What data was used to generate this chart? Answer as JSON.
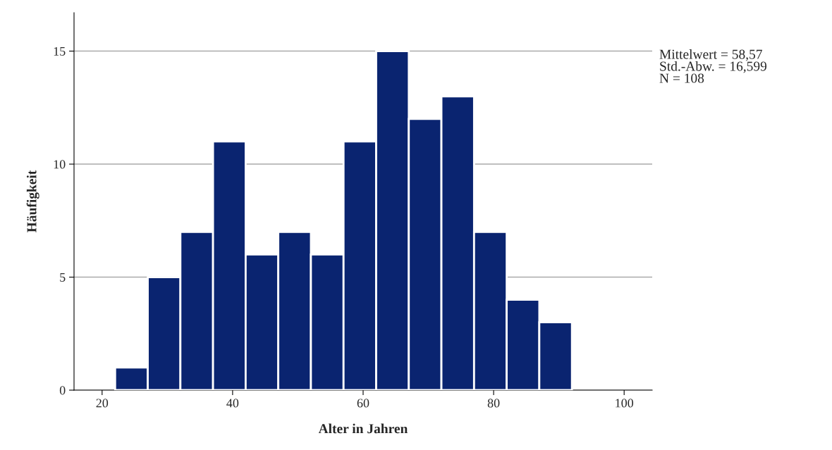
{
  "chart_data": {
    "type": "histogram",
    "xlabel": "Alter in Jahren",
    "ylabel": "Häufigkeit",
    "bins": [
      22,
      27,
      32,
      37,
      42,
      47,
      52,
      57,
      62,
      67,
      72,
      77,
      82,
      87,
      92
    ],
    "values": [
      1,
      5,
      7,
      11,
      6,
      7,
      6,
      11,
      15,
      12,
      13,
      7,
      4,
      3
    ],
    "color": "#0a2470",
    "xlim": [
      15.7,
      104.3
    ],
    "ylim": [
      0,
      16.7
    ],
    "xticks": [
      20,
      40,
      60,
      80,
      100
    ],
    "yticks": [
      0,
      5,
      10,
      15
    ],
    "grid": "y",
    "annotations": [
      "Mittelwert = 58,57\nStd.-Abw. = 16,599\nN = 108"
    ]
  }
}
